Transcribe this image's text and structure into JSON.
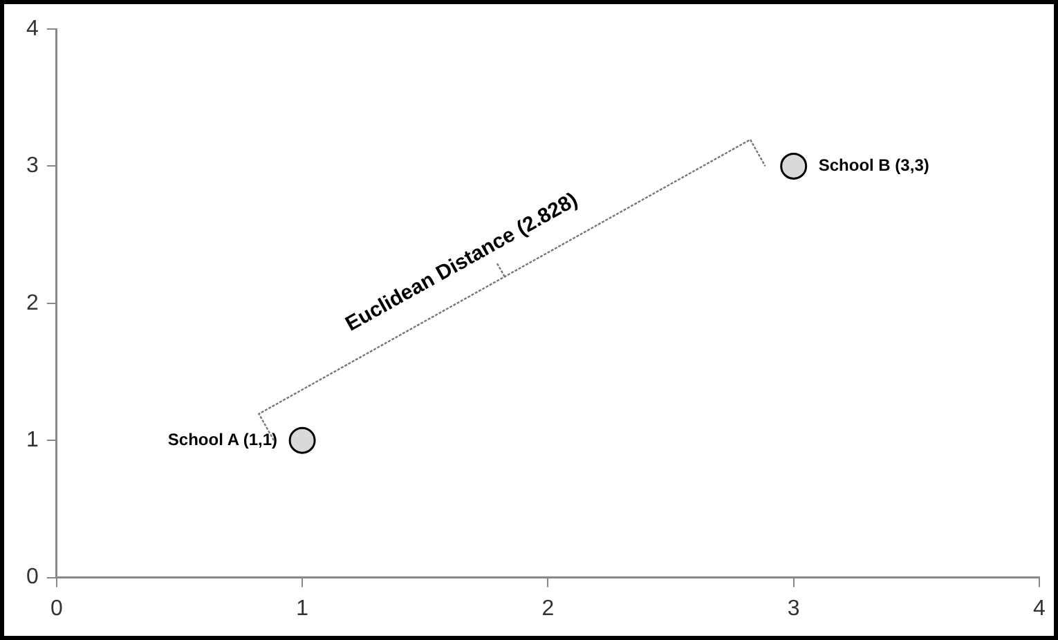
{
  "chart_data": {
    "type": "scatter",
    "x": [
      1,
      3
    ],
    "series": [
      {
        "color": "#d9d9d9",
        "values": [
          1,
          3
        ]
      }
    ],
    "xlim": [
      0,
      4
    ],
    "ylim": [
      0,
      4
    ],
    "xticks": [
      0,
      1,
      2,
      3,
      4
    ],
    "yticks": [
      0,
      1,
      2,
      3,
      4
    ],
    "grid": false,
    "legend": false,
    "marker": "circle",
    "annotations": [
      {
        "text": "School A (1,1)",
        "x": 1,
        "y": 1
      },
      {
        "text": "School B (3,3)",
        "x": 3,
        "y": 3
      },
      "Euclidean Distance (2.828)"
    ]
  }
}
